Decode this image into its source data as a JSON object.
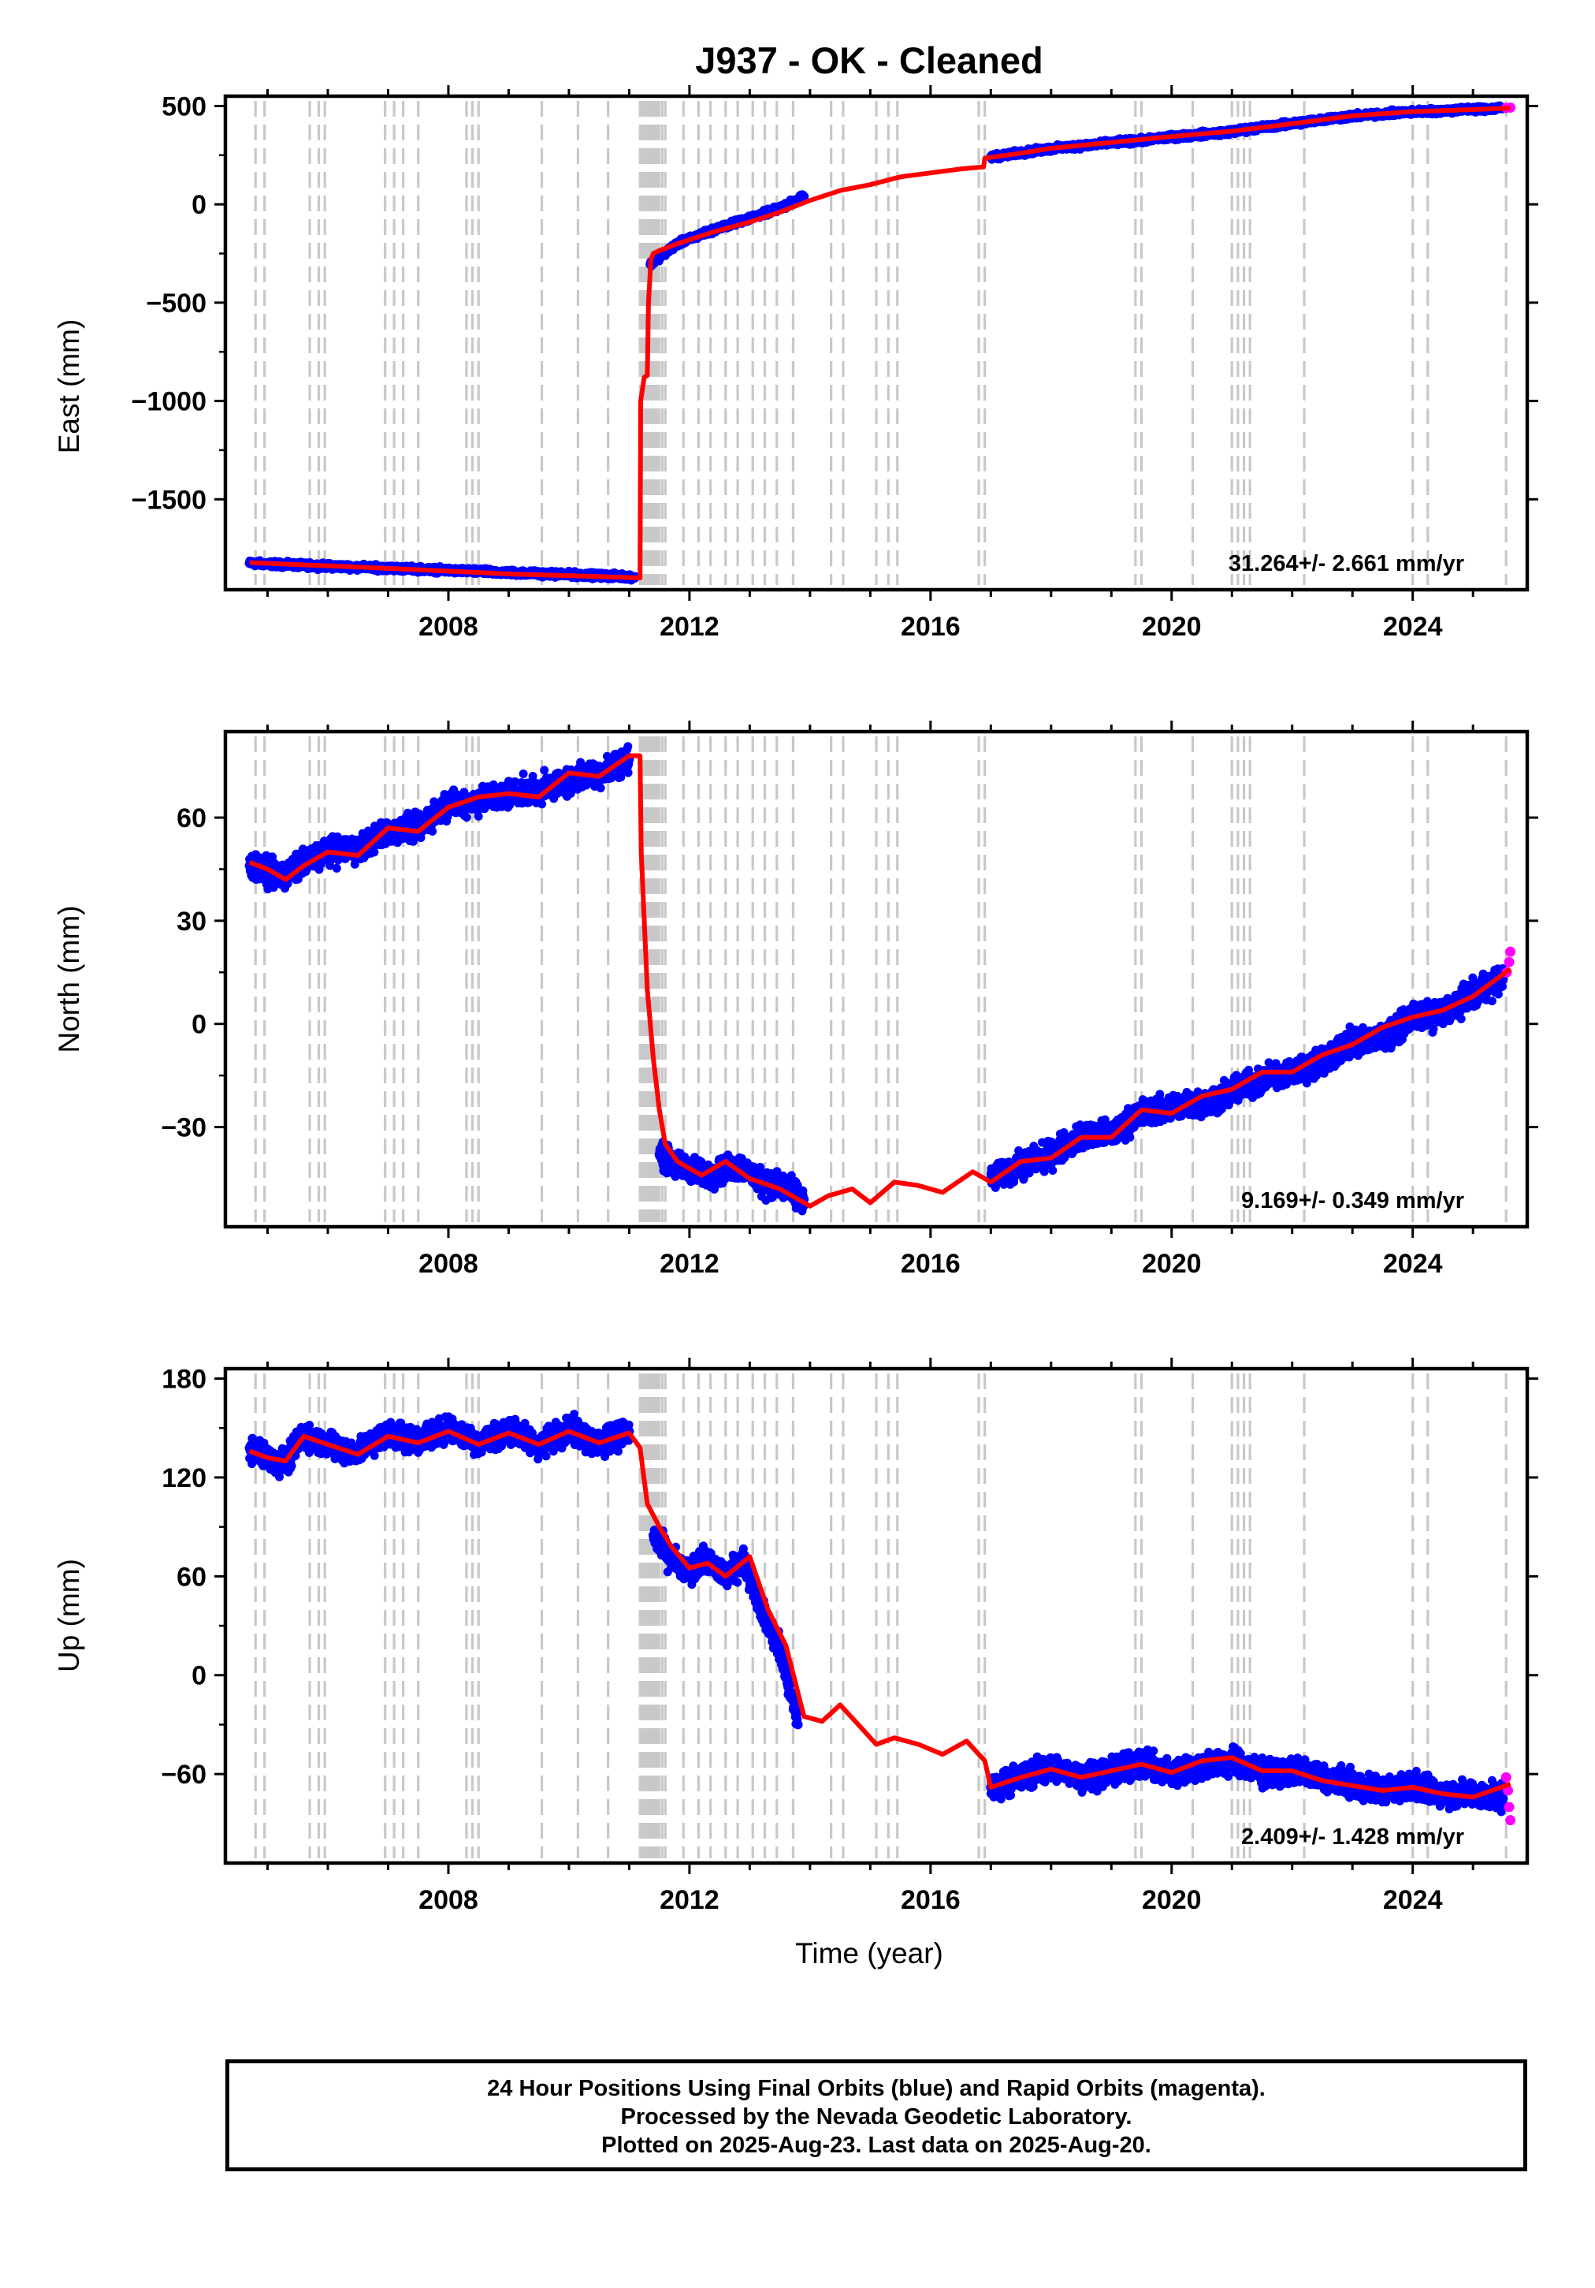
{
  "title": "J937  - OK - Cleaned",
  "xlabel": "Time (year)",
  "footer": {
    "line1": "24 Hour Positions Using Final Orbits (blue) and Rapid Orbits (magenta).",
    "line2": "Processed by the Nevada Geodetic Laboratory.",
    "line3": "Plotted on 2025-Aug-23. Last data on 2025-Aug-20."
  },
  "colors": {
    "final": "#0000ff",
    "rapid": "#ff00ff",
    "model": "#ff0000",
    "steps": "#c8c8c8"
  },
  "chart_data": [
    {
      "type": "scatter",
      "component": "East",
      "ylabel": "East (mm)",
      "xlim": [
        2004.3,
        2025.9
      ],
      "ylim": [
        -1960,
        550
      ],
      "yticks": [
        500,
        0,
        -500,
        -1000,
        -1500
      ],
      "xticks": [
        2008,
        2012,
        2016,
        2020,
        2024
      ],
      "rate_text": "31.264+/- 2.661 mm/yr",
      "series": [
        {
          "role": "final",
          "x": [
            2004.7,
            2005.5,
            2006.5,
            2007.5,
            2008.5,
            2009.5,
            2010.5,
            2011.1,
            2011.35,
            2011.8,
            2012.4,
            2013.0,
            2013.5,
            2013.9,
            2017.0,
            2017.5,
            2018.0,
            2018.5,
            2019.0,
            2019.5,
            2020.0,
            2020.5,
            2021.0,
            2021.5,
            2022.0,
            2022.5,
            2023.0,
            2023.5,
            2024.0,
            2024.5,
            2025.0,
            2025.5
          ],
          "y": [
            -1825,
            -1835,
            -1845,
            -1855,
            -1868,
            -1878,
            -1888,
            -1895,
            -305,
            -200,
            -130,
            -70,
            -20,
            40,
            240,
            262,
            283,
            298,
            313,
            325,
            342,
            356,
            370,
            392,
            410,
            432,
            448,
            460,
            470,
            476,
            484,
            490
          ]
        },
        {
          "role": "rapid",
          "x": [
            2025.55,
            2025.62
          ],
          "y": [
            490,
            492
          ]
        },
        {
          "role": "model",
          "x": [
            2004.7,
            2006.0,
            2007.5,
            2009.0,
            2010.5,
            2011.18,
            2011.19,
            2011.25,
            2011.3,
            2011.32,
            2011.36,
            2011.4,
            2011.5,
            2011.8,
            2012.4,
            2013.0,
            2013.5,
            2014.0,
            2014.5,
            2015.0,
            2015.5,
            2016.0,
            2016.5,
            2016.88,
            2016.9,
            2017.5,
            2018.0,
            2019.0,
            2020.0,
            2021.0,
            2022.0,
            2023.0,
            2024.0,
            2025.0,
            2025.62
          ],
          "y": [
            -1822,
            -1838,
            -1858,
            -1880,
            -1893,
            -1900,
            -1000,
            -880,
            -870,
            -500,
            -280,
            -250,
            -235,
            -200,
            -140,
            -90,
            -40,
            20,
            70,
            100,
            140,
            160,
            180,
            190,
            235,
            260,
            285,
            315,
            345,
            372,
            410,
            450,
            472,
            482,
            490
          ]
        }
      ]
    },
    {
      "type": "scatter",
      "component": "North",
      "ylabel": "North (mm)",
      "xlim": [
        2004.3,
        2025.9
      ],
      "ylim": [
        -59,
        85
      ],
      "yticks": [
        60,
        30,
        0,
        -30
      ],
      "xticks": [
        2008,
        2012,
        2016,
        2020,
        2024
      ],
      "rate_text": "9.169+/- 0.349 mm/yr",
      "series": [
        {
          "role": "final",
          "x": [
            2004.7,
            2005.0,
            2005.3,
            2005.6,
            2006.0,
            2006.5,
            2007.0,
            2007.5,
            2008.0,
            2008.5,
            2009.0,
            2009.5,
            2010.0,
            2010.5,
            2011.0,
            2011.5,
            2011.8,
            2012.3,
            2012.8,
            2013.2,
            2013.6,
            2013.9,
            2017.0,
            2017.5,
            2018.0,
            2018.5,
            2019.0,
            2019.5,
            2020.0,
            2020.5,
            2021.0,
            2021.5,
            2022.0,
            2022.5,
            2023.0,
            2023.5,
            2024.0,
            2024.5,
            2025.0,
            2025.5
          ],
          "y": [
            46,
            44,
            43,
            47,
            50,
            51,
            56,
            57,
            64,
            65,
            67,
            68,
            71,
            73,
            77,
            -38,
            -41,
            -44,
            -41,
            -46,
            -48,
            -51,
            -45,
            -41,
            -38,
            -33,
            -32,
            -26,
            -24,
            -23,
            -20,
            -16,
            -14,
            -11,
            -5,
            -4,
            2,
            3,
            9,
            13
          ]
        },
        {
          "role": "rapid",
          "x": [
            2025.56,
            2025.6,
            2025.62
          ],
          "y": [
            15,
            18,
            21
          ]
        },
        {
          "role": "model",
          "x": [
            2004.7,
            2005.0,
            2005.3,
            2005.6,
            2006.0,
            2006.5,
            2007.0,
            2007.5,
            2008.0,
            2008.5,
            2009.0,
            2009.5,
            2010.0,
            2010.5,
            2011.0,
            2011.18,
            2011.2,
            2011.3,
            2011.4,
            2011.5,
            2011.6,
            2011.8,
            2012.2,
            2012.6,
            2013.0,
            2013.5,
            2014.0,
            2014.3,
            2014.7,
            2015.0,
            2015.4,
            2015.8,
            2016.2,
            2016.7,
            2017.0,
            2017.5,
            2018.0,
            2018.5,
            2019.0,
            2019.5,
            2020.0,
            2020.5,
            2021.0,
            2021.5,
            2022.0,
            2022.5,
            2023.0,
            2023.5,
            2024.0,
            2024.5,
            2025.0,
            2025.62
          ],
          "y": [
            47,
            45,
            42,
            46,
            50,
            49,
            57,
            56,
            63,
            66,
            67,
            66,
            73,
            72,
            78,
            78,
            50,
            10,
            -10,
            -25,
            -35,
            -40,
            -44,
            -40,
            -45,
            -48,
            -53,
            -50,
            -48,
            -52,
            -46,
            -47,
            -49,
            -43,
            -46,
            -40,
            -39,
            -33,
            -33,
            -25,
            -26,
            -21,
            -19,
            -14,
            -14,
            -9,
            -6,
            -1,
            2,
            4,
            8,
            16
          ]
        }
      ]
    },
    {
      "type": "scatter",
      "component": "Up",
      "ylabel": "Up (mm)",
      "xlim": [
        2004.3,
        2025.9
      ],
      "ylim": [
        -114,
        186
      ],
      "yticks": [
        180,
        120,
        60,
        0,
        -60
      ],
      "xticks": [
        2008,
        2012,
        2016,
        2020,
        2024
      ],
      "rate_text": "2.409+/- 1.428 mm/yr",
      "series": [
        {
          "role": "final",
          "x": [
            2004.7,
            2005.0,
            2005.3,
            2005.6,
            2006.0,
            2006.5,
            2007.0,
            2007.5,
            2008.0,
            2008.5,
            2009.0,
            2009.5,
            2010.0,
            2010.5,
            2011.0,
            2011.4,
            2011.7,
            2012.0,
            2012.3,
            2012.6,
            2012.9,
            2013.2,
            2013.5,
            2013.8,
            2017.0,
            2017.5,
            2018.0,
            2018.5,
            2019.0,
            2019.5,
            2020.0,
            2020.5,
            2021.0,
            2021.5,
            2022.0,
            2022.5,
            2023.0,
            2023.5,
            2024.0,
            2024.5,
            2025.0,
            2025.5
          ],
          "y": [
            138,
            132,
            129,
            146,
            140,
            135,
            148,
            142,
            150,
            141,
            149,
            139,
            150,
            140,
            148,
            85,
            70,
            62,
            70,
            60,
            70,
            40,
            15,
            -30,
            -68,
            -62,
            -56,
            -62,
            -58,
            -54,
            -60,
            -55,
            -52,
            -60,
            -58,
            -62,
            -66,
            -70,
            -67,
            -72,
            -72,
            -75
          ]
        },
        {
          "role": "rapid",
          "x": [
            2025.55,
            2025.58,
            2025.6,
            2025.62
          ],
          "y": [
            -62,
            -70,
            -80,
            -88
          ]
        },
        {
          "role": "model",
          "x": [
            2004.7,
            2005.0,
            2005.3,
            2005.6,
            2006.0,
            2006.5,
            2007.0,
            2007.5,
            2008.0,
            2008.5,
            2009.0,
            2009.5,
            2010.0,
            2010.5,
            2011.0,
            2011.18,
            2011.3,
            2011.5,
            2011.7,
            2012.0,
            2012.3,
            2012.6,
            2013.0,
            2013.3,
            2013.6,
            2013.9,
            2014.2,
            2014.5,
            2014.8,
            2015.1,
            2015.4,
            2015.8,
            2016.2,
            2016.6,
            2016.9,
            2017.0,
            2017.5,
            2018.0,
            2018.5,
            2019.0,
            2019.5,
            2020.0,
            2020.5,
            2021.0,
            2021.5,
            2022.0,
            2022.5,
            2023.0,
            2023.5,
            2024.0,
            2024.5,
            2025.0,
            2025.62
          ],
          "y": [
            136,
            132,
            130,
            145,
            140,
            134,
            145,
            141,
            148,
            140,
            147,
            140,
            148,
            141,
            147,
            138,
            104,
            90,
            78,
            65,
            68,
            60,
            72,
            40,
            18,
            -25,
            -28,
            -18,
            -30,
            -42,
            -38,
            -42,
            -48,
            -40,
            -52,
            -68,
            -62,
            -57,
            -62,
            -58,
            -54,
            -59,
            -52,
            -50,
            -58,
            -58,
            -64,
            -67,
            -70,
            -68,
            -72,
            -74,
            -66
          ]
        }
      ]
    }
  ],
  "equipment_changes": [
    2004.8,
    2004.95,
    2005.7,
    2005.85,
    2005.95,
    2006.95,
    2007.1,
    2007.25,
    2007.5,
    2008.3,
    2008.4,
    2008.5,
    2009.55,
    2010.15,
    2010.65,
    2011.18,
    2011.22,
    2011.26,
    2011.3,
    2011.34,
    2011.38,
    2011.42,
    2011.46,
    2011.5,
    2011.55,
    2011.6,
    2011.9,
    2012.15,
    2012.35,
    2012.6,
    2012.8,
    2013.05,
    2013.25,
    2013.45,
    2013.72,
    2014.35,
    2014.55,
    2015.1,
    2015.3,
    2015.45,
    2016.8,
    2016.9,
    2019.4,
    2019.5,
    2020.35,
    2021.0,
    2021.1,
    2021.2,
    2021.3,
    2022.2,
    2024.0,
    2024.25,
    2025.55
  ]
}
